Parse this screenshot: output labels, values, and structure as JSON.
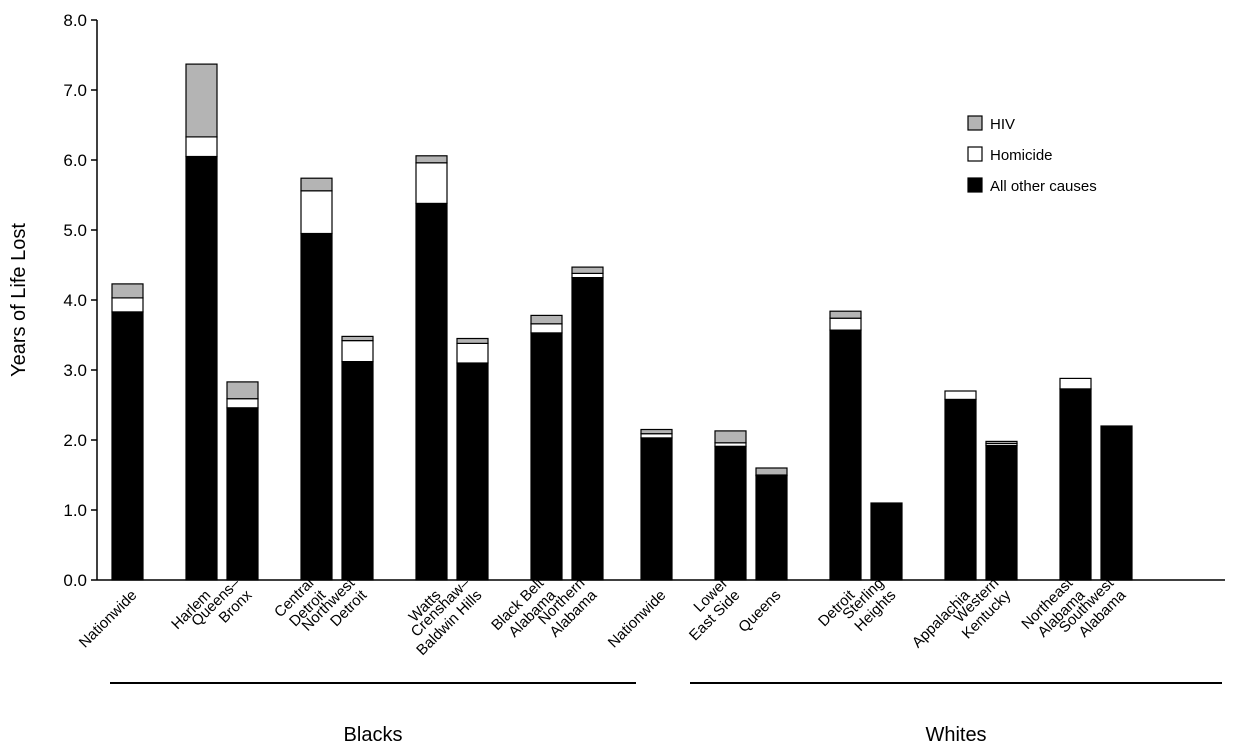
{
  "chart_data": {
    "type": "bar",
    "stacked": true,
    "ylabel": "Years of Life Lost",
    "ylim": [
      0,
      8
    ],
    "yticks": [
      "0.0",
      "1.0",
      "2.0",
      "3.0",
      "4.0",
      "5.0",
      "6.0",
      "7.0",
      "8.0"
    ],
    "grid": false,
    "legend_position": "top-right",
    "series": [
      {
        "name": "All other causes",
        "color": "#000000"
      },
      {
        "name": "Homicide",
        "color": "#ffffff"
      },
      {
        "name": "HIV",
        "color": "#b4b4b4"
      }
    ],
    "legend_order": [
      "HIV",
      "Homicide",
      "All other causes"
    ],
    "groups": [
      {
        "label": "Blacks",
        "clusters": [
          {
            "bars": [
              {
                "label": [
                  "Nationwide"
                ],
                "values": [
                  3.83,
                  0.2,
                  0.2
                ]
              }
            ]
          },
          {
            "bars": [
              {
                "label": [
                  "Harlem"
                ],
                "values": [
                  6.05,
                  0.28,
                  1.04
                ]
              },
              {
                "label": [
                  "Queens–",
                  "Bronx"
                ],
                "values": [
                  2.46,
                  0.13,
                  0.24
                ]
              }
            ]
          },
          {
            "bars": [
              {
                "label": [
                  "Central",
                  "Detroit"
                ],
                "values": [
                  4.95,
                  0.61,
                  0.18
                ]
              },
              {
                "label": [
                  "Northwest",
                  "Detroit"
                ],
                "values": [
                  3.12,
                  0.3,
                  0.06
                ]
              }
            ]
          },
          {
            "bars": [
              {
                "label": [
                  "Watts"
                ],
                "values": [
                  5.38,
                  0.58,
                  0.1
                ]
              },
              {
                "label": [
                  "Crenshaw–",
                  "Baldwin Hills"
                ],
                "values": [
                  3.1,
                  0.28,
                  0.07
                ]
              }
            ]
          },
          {
            "bars": [
              {
                "label": [
                  "Black Belt",
                  "Alabama"
                ],
                "values": [
                  3.53,
                  0.13,
                  0.12
                ]
              },
              {
                "label": [
                  "Northern",
                  "Alabama"
                ],
                "values": [
                  4.32,
                  0.06,
                  0.09
                ]
              }
            ]
          }
        ]
      },
      {
        "label": "Whites",
        "clusters": [
          {
            "bars": [
              {
                "label": [
                  "Nationwide"
                ],
                "values": [
                  2.03,
                  0.06,
                  0.06
                ]
              }
            ]
          },
          {
            "bars": [
              {
                "label": [
                  "Lower",
                  "East Side"
                ],
                "values": [
                  1.91,
                  0.05,
                  0.17
                ]
              },
              {
                "label": [
                  "Queens"
                ],
                "values": [
                  1.49,
                  0.01,
                  0.1
                ]
              }
            ]
          },
          {
            "bars": [
              {
                "label": [
                  "Detroit"
                ],
                "values": [
                  3.57,
                  0.17,
                  0.1
                ]
              },
              {
                "label": [
                  "Sterling",
                  "Heights"
                ],
                "values": [
                  1.1,
                  0.0,
                  0.0
                ]
              }
            ]
          },
          {
            "bars": [
              {
                "label": [
                  "Appalachia"
                ],
                "values": [
                  2.58,
                  0.12,
                  0.0
                ]
              },
              {
                "label": [
                  "Western",
                  "Kentucky"
                ],
                "values": [
                  1.92,
                  0.03,
                  0.03
                ]
              }
            ]
          },
          {
            "bars": [
              {
                "label": [
                  "Northeast",
                  "Alabama"
                ],
                "values": [
                  2.73,
                  0.15,
                  0.0
                ]
              },
              {
                "label": [
                  "Southwest",
                  "Alabama"
                ],
                "values": [
                  2.2,
                  0.0,
                  0.0
                ]
              }
            ]
          }
        ]
      }
    ]
  }
}
